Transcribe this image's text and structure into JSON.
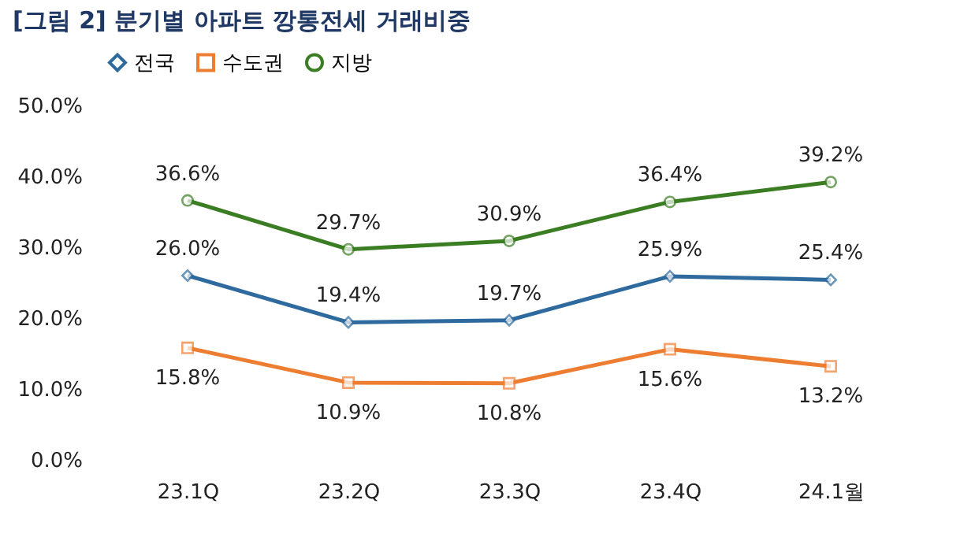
{
  "chart_data": {
    "type": "line",
    "title": "[그림 2] 분기별 아파트 깡통전세 거래비중",
    "categories": [
      "23.1Q",
      "23.2Q",
      "23.3Q",
      "23.4Q",
      "24.1월"
    ],
    "series": [
      {
        "name": "전국",
        "color": "#2e6a9e",
        "marker": "diamond",
        "values": [
          26.0,
          19.4,
          19.7,
          25.9,
          25.4
        ],
        "value_labels": [
          "26.0%",
          "19.4%",
          "19.7%",
          "25.9%",
          "25.4%"
        ]
      },
      {
        "name": "수도권",
        "color": "#ed7d31",
        "marker": "square",
        "values": [
          15.8,
          10.9,
          10.8,
          15.6,
          13.2
        ],
        "value_labels": [
          "15.8%",
          "10.9%",
          "10.8%",
          "15.6%",
          "13.2%"
        ]
      },
      {
        "name": "지방",
        "color": "#3a7d22",
        "marker": "circle",
        "values": [
          36.6,
          29.7,
          30.9,
          36.4,
          39.2
        ],
        "value_labels": [
          "36.6%",
          "29.7%",
          "30.9%",
          "36.4%",
          "39.2%"
        ]
      }
    ],
    "ylim": [
      0,
      50
    ],
    "yticks": [
      {
        "value": 0,
        "label": "0.0%"
      },
      {
        "value": 10,
        "label": "10.0%"
      },
      {
        "value": 20,
        "label": "20.0%"
      },
      {
        "value": 30,
        "label": "30.0%"
      },
      {
        "value": 40,
        "label": "40.0%"
      },
      {
        "value": 50,
        "label": "50.0%"
      }
    ],
    "grid": false,
    "legend": "top",
    "line_style": "solid"
  }
}
